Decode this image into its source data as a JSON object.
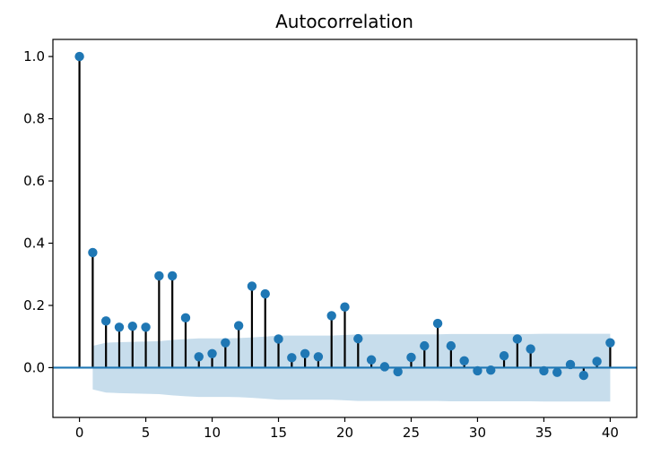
{
  "chart_data": {
    "type": "stem",
    "title": "Autocorrelation",
    "xlabel": "",
    "ylabel": "",
    "xlim": [
      -2,
      42
    ],
    "ylim": [
      -0.16,
      1.055
    ],
    "x_ticks": [
      0,
      5,
      10,
      15,
      20,
      25,
      30,
      35,
      40
    ],
    "x_tick_labels": [
      "0",
      "5",
      "10",
      "15",
      "20",
      "25",
      "30",
      "35",
      "40"
    ],
    "y_ticks": [
      0.0,
      0.2,
      0.4,
      0.6,
      0.8,
      1.0
    ],
    "y_tick_labels": [
      "0.0",
      "0.2",
      "0.4",
      "0.6",
      "0.8",
      "1.0"
    ],
    "grid": false,
    "lags": [
      0,
      1,
      2,
      3,
      4,
      5,
      6,
      7,
      8,
      9,
      10,
      11,
      12,
      13,
      14,
      15,
      16,
      17,
      18,
      19,
      20,
      21,
      22,
      23,
      24,
      25,
      26,
      27,
      28,
      29,
      30,
      31,
      32,
      33,
      34,
      35,
      36,
      37,
      38,
      39,
      40
    ],
    "values": [
      1.0,
      0.37,
      0.15,
      0.13,
      0.133,
      0.13,
      0.295,
      0.295,
      0.16,
      0.035,
      0.045,
      0.08,
      0.135,
      0.262,
      0.237,
      0.092,
      0.032,
      0.045,
      0.035,
      0.167,
      0.195,
      0.093,
      0.025,
      0.003,
      -0.013,
      0.033,
      0.07,
      0.142,
      0.07,
      0.022,
      -0.01,
      -0.008,
      0.038,
      0.092,
      0.06,
      -0.01,
      -0.015,
      0.01,
      -0.025,
      0.02,
      0.08
    ],
    "confidence_band": {
      "lags": [
        1,
        2,
        3,
        4,
        5,
        6,
        7,
        8,
        9,
        10,
        11,
        12,
        13,
        14,
        15,
        16,
        17,
        18,
        19,
        20,
        21,
        22,
        23,
        24,
        25,
        26,
        27,
        28,
        29,
        30,
        31,
        32,
        33,
        34,
        35,
        36,
        37,
        38,
        39,
        40
      ],
      "upper": [
        0.07,
        0.08,
        0.082,
        0.083,
        0.084,
        0.085,
        0.089,
        0.092,
        0.094,
        0.094,
        0.094,
        0.095,
        0.097,
        0.1,
        0.103,
        0.103,
        0.103,
        0.103,
        0.103,
        0.105,
        0.107,
        0.107,
        0.107,
        0.107,
        0.107,
        0.107,
        0.107,
        0.108,
        0.108,
        0.108,
        0.108,
        0.108,
        0.108,
        0.108,
        0.109,
        0.109,
        0.109,
        0.109,
        0.109,
        0.109
      ],
      "lower": [
        -0.07,
        -0.08,
        -0.082,
        -0.083,
        -0.084,
        -0.085,
        -0.089,
        -0.092,
        -0.094,
        -0.094,
        -0.094,
        -0.095,
        -0.097,
        -0.1,
        -0.103,
        -0.103,
        -0.103,
        -0.103,
        -0.103,
        -0.105,
        -0.107,
        -0.107,
        -0.107,
        -0.107,
        -0.107,
        -0.107,
        -0.107,
        -0.108,
        -0.108,
        -0.108,
        -0.108,
        -0.108,
        -0.108,
        -0.108,
        -0.109,
        -0.109,
        -0.109,
        -0.109,
        -0.109,
        -0.109
      ]
    },
    "colors": {
      "marker": "#1f77b4",
      "stem": "#000000",
      "baseline": "#1f77b4",
      "band": "#1f77b4"
    }
  }
}
